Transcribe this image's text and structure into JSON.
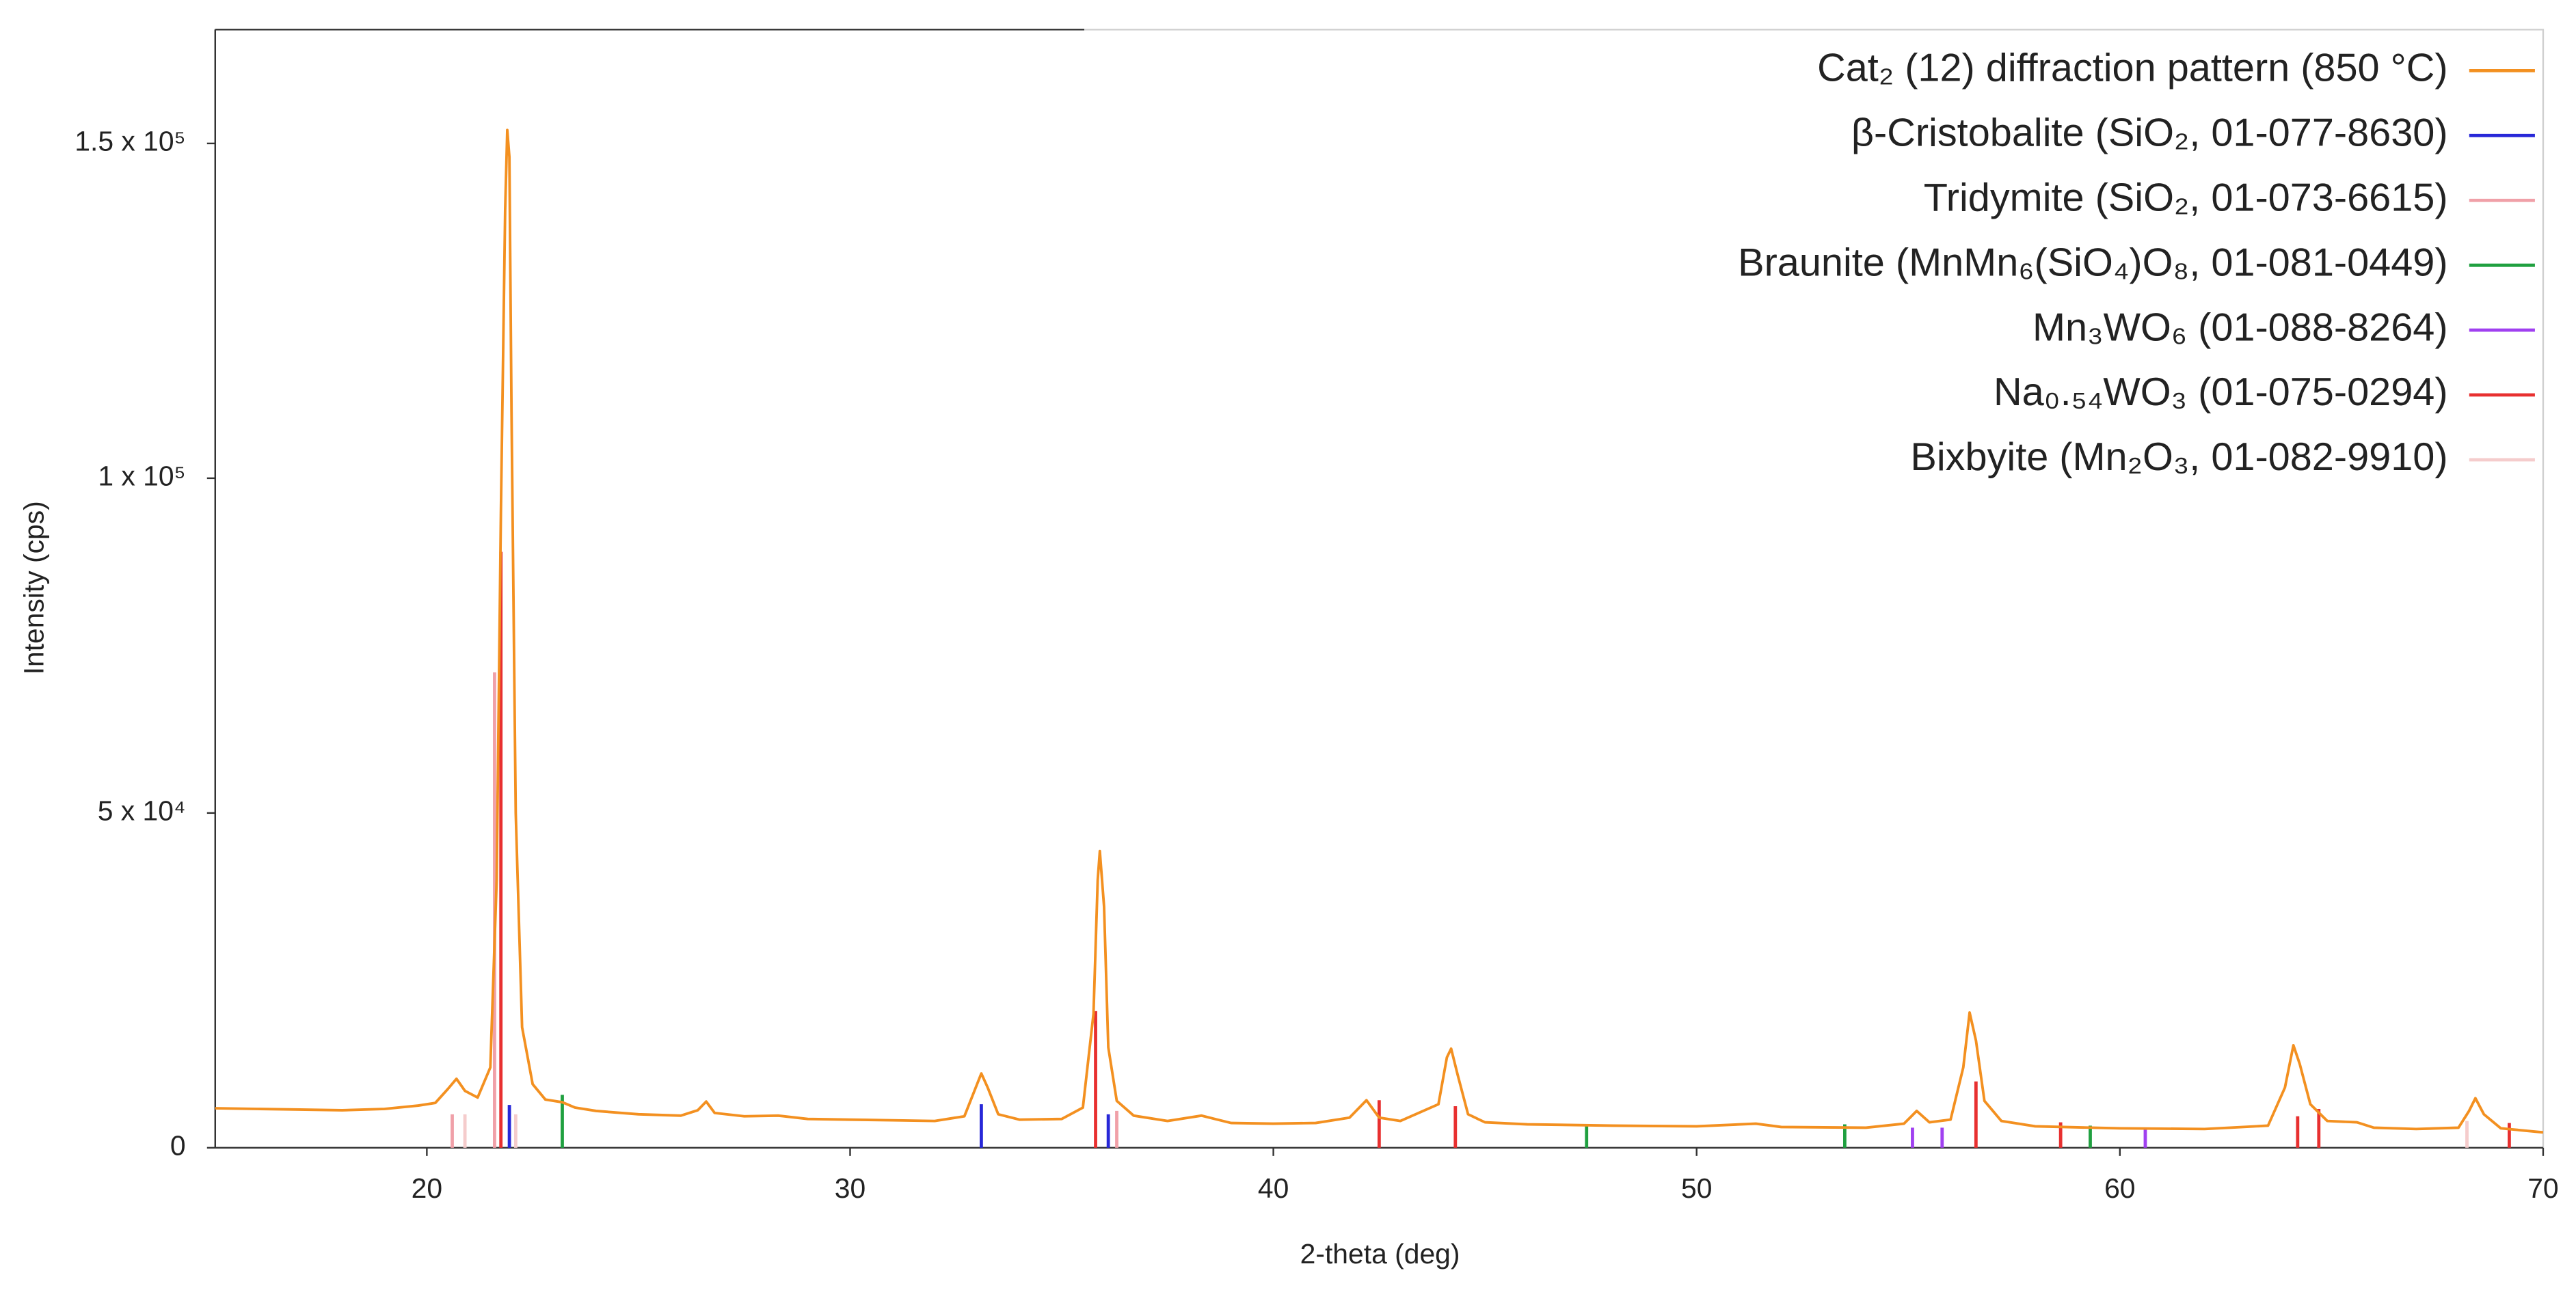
{
  "chart_data": {
    "type": "xrd",
    "xlabel": "2-theta (deg)",
    "ylabel": "Intensity (cps)",
    "xlim": [
      15,
      70
    ],
    "xticks": [
      20,
      30,
      40,
      50,
      60,
      70
    ],
    "ylim": [
      0,
      167000
    ],
    "yticks": [
      0,
      {
        "value": 50000,
        "label": "5 x 10⁴"
      },
      {
        "value": 100000,
        "label": "1 x 10⁵"
      },
      {
        "value": 150000,
        "label": "1.5 x 10⁵"
      }
    ],
    "legend": "upper right",
    "series": [
      {
        "name": "Cat₂ (12) diffraction pattern (850 °C)",
        "color": "#f39020",
        "kind": "line",
        "x": [
          15,
          16,
          17,
          18,
          19,
          19.8,
          20.2,
          20.5,
          20.7,
          20.9,
          21.2,
          21.5,
          21.65,
          21.75,
          21.85,
          21.9,
          21.95,
          22.0,
          22.1,
          22.25,
          22.5,
          22.8,
          23.2,
          23.5,
          24,
          25,
          26,
          26.4,
          26.6,
          26.8,
          27.5,
          28.3,
          29,
          30,
          31,
          32,
          32.7,
          33.0,
          33.1,
          33.25,
          33.5,
          34,
          35,
          35.5,
          35.75,
          35.85,
          35.9,
          36.0,
          36.1,
          36.3,
          36.7,
          37.5,
          38.3,
          39,
          40,
          41,
          41.8,
          42.2,
          42.5,
          43,
          43.9,
          44.1,
          44.2,
          44.35,
          44.6,
          45,
          46,
          48,
          50,
          51.4,
          52,
          54,
          54.9,
          55.2,
          55.5,
          56,
          56.3,
          56.45,
          56.6,
          56.8,
          57.2,
          58,
          60,
          62,
          63.5,
          63.9,
          64.1,
          64.25,
          64.5,
          64.9,
          65.6,
          66,
          67,
          68,
          68.25,
          68.4,
          68.6,
          69,
          70
        ],
        "values": [
          5900,
          5800,
          5700,
          5600,
          5800,
          6300,
          6700,
          8800,
          10300,
          8500,
          7500,
          12000,
          40000,
          95000,
          140000,
          152000,
          148000,
          110000,
          50000,
          18000,
          9500,
          7200,
          6800,
          6000,
          5500,
          5000,
          4800,
          5600,
          6900,
          5200,
          4700,
          4800,
          4300,
          4200,
          4100,
          4000,
          4700,
          9500,
          11100,
          9000,
          5000,
          4200,
          4300,
          6000,
          20000,
          40000,
          44300,
          36000,
          15000,
          7000,
          4800,
          4000,
          4800,
          3700,
          3600,
          3700,
          4500,
          7100,
          4500,
          4000,
          6500,
          13500,
          14800,
          11000,
          5000,
          3800,
          3500,
          3300,
          3200,
          3600,
          3100,
          3000,
          3600,
          5500,
          3800,
          4200,
          12000,
          20200,
          16000,
          7000,
          4000,
          3200,
          2900,
          2800,
          3300,
          9000,
          15300,
          12500,
          6500,
          4000,
          3800,
          3000,
          2800,
          3000,
          5500,
          7400,
          5000,
          2900,
          2300
        ]
      },
      {
        "name": "β-Cristobalite (SiO₂, 01-077-8630)",
        "color": "#2828d8",
        "kind": "stick",
        "x": [
          21.95,
          33.1,
          36.1
        ],
        "values": [
          6400,
          6500,
          5000
        ]
      },
      {
        "name": "Tridymite (SiO₂, 01-073-6615)",
        "color": "#f0a0a8",
        "kind": "stick",
        "x": [
          20.6,
          21.6,
          36.3
        ],
        "values": [
          5000,
          71000,
          5500
        ]
      },
      {
        "name": "Braunite (MnMn₆(SiO₄)O₈, 01-081-0449)",
        "color": "#20a040",
        "kind": "stick",
        "x": [
          23.2,
          47.4,
          53.5,
          59.3
        ],
        "values": [
          7900,
          3300,
          3500,
          3300
        ]
      },
      {
        "name": "Mn₃WO₆ (01-088-8264)",
        "color": "#a040f0",
        "kind": "stick",
        "x": [
          55.1,
          55.8,
          60.6
        ],
        "values": [
          3000,
          3000,
          2800
        ]
      },
      {
        "name": "Na₀.₅₄WO₃ (01-075-0294)",
        "color": "#e83030",
        "kind": "stick",
        "x": [
          21.75,
          35.8,
          42.5,
          44.3,
          56.6,
          58.6,
          64.2,
          64.7,
          69.2
        ],
        "values": [
          89000,
          20400,
          7100,
          6200,
          9900,
          3800,
          4700,
          5800,
          3700
        ]
      },
      {
        "name": "Bixbyite (Mn₂O₃, 01-082-9910)",
        "color": "#f5cccc",
        "kind": "stick",
        "x": [
          20.9,
          22.1,
          68.2
        ],
        "values": [
          5000,
          5000,
          4000
        ]
      }
    ]
  }
}
